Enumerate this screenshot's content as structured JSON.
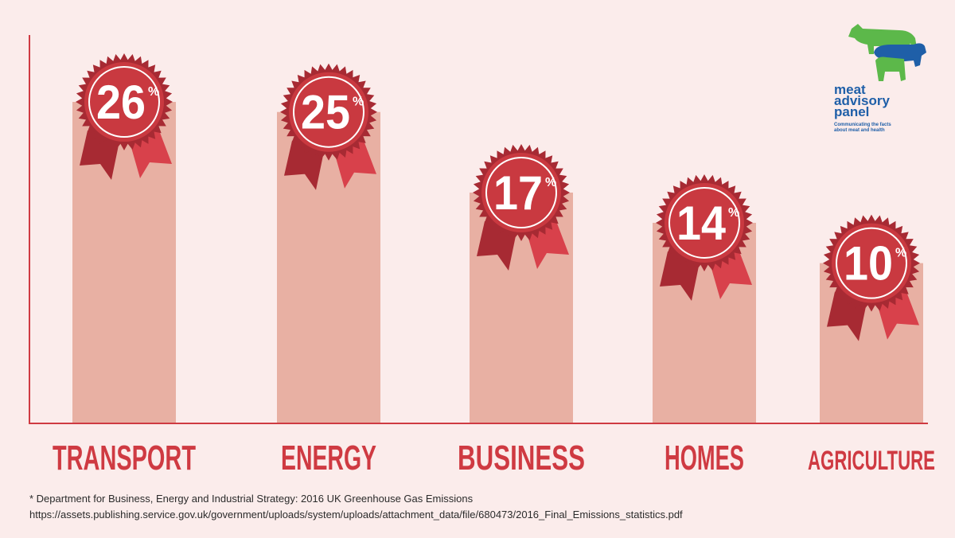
{
  "chart_data": {
    "type": "bar",
    "categories": [
      "TRANSPORT",
      "ENERGY",
      "BUSINESS",
      "HOMES",
      "AGRICULTURE"
    ],
    "values": [
      26,
      25,
      17,
      14,
      10
    ],
    "value_suffix": "%",
    "title": "",
    "xlabel": "",
    "ylabel": "",
    "grid": false,
    "colors": {
      "bar": "#e8b0a3",
      "badge": "#c93940",
      "badge_dark": "#a72a33",
      "ribbon_left": "#a72a33",
      "ribbon_right": "#d8414b",
      "label": "#cf3a42",
      "axis": "#cf3a42"
    }
  },
  "source": {
    "line1": "* Department for Business, Energy and Industrial Strategy: 2016 UK Greenhouse Gas Emissions",
    "line2": "https://assets.publishing.service.gov.uk/government/uploads/system/uploads/attachment_data/file/680473/2016_Final_Emissions_statistics.pdf"
  },
  "logo": {
    "line1": "meat",
    "line2": "advisory",
    "line3": "panel",
    "tagline1": "Communicating the facts",
    "tagline2": "about meat and health",
    "icon": "cow-pig-logo-icon"
  }
}
